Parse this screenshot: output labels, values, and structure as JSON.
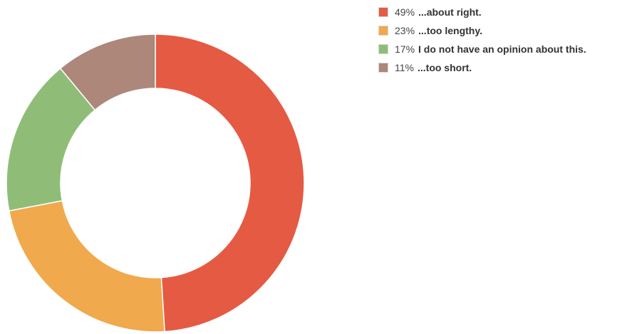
{
  "chart_data": {
    "type": "pie",
    "donut": true,
    "slices": [
      {
        "label": "...about right.",
        "percent_label": "49%",
        "value": 49,
        "color": "#e55a42"
      },
      {
        "label": "...too lengthy.",
        "percent_label": "23%",
        "value": 23,
        "color": "#f0a94c"
      },
      {
        "label": "I do not have an opinion about this.",
        "percent_label": "17%",
        "value": 17,
        "color": "#8fbd78"
      },
      {
        "label": "...too short.",
        "percent_label": "11%",
        "value": 11,
        "color": "#ad877a"
      }
    ],
    "legend_position": "top-right",
    "start_angle": "12 o'clock",
    "direction": "clockwise"
  }
}
